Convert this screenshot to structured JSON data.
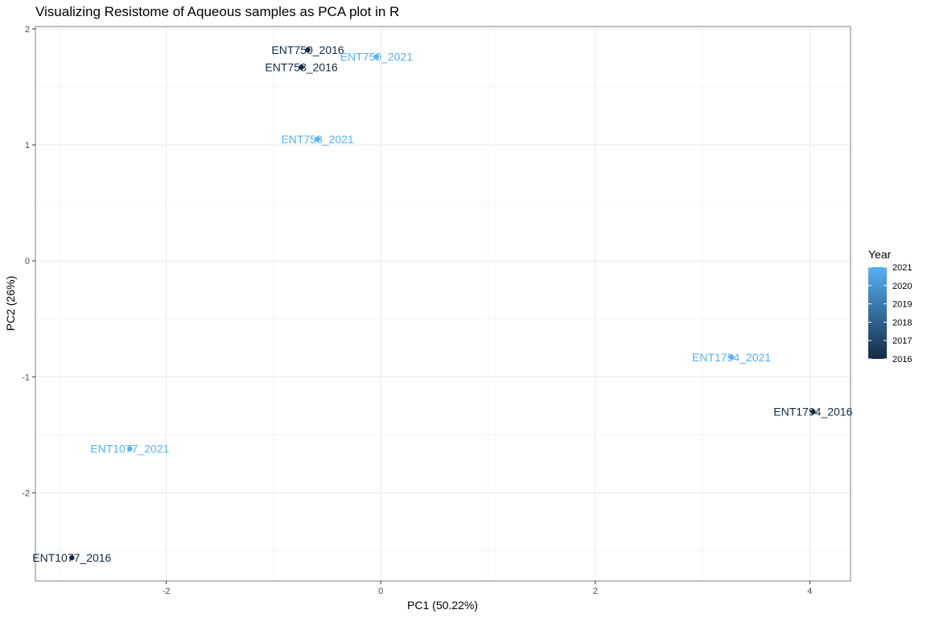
{
  "chart_data": {
    "type": "scatter",
    "title": "Visualizing Resistome of Aqueous samples as PCA plot in R",
    "xlabel": "PC1 (50.22%)",
    "ylabel": "PC2 (26%)",
    "xlim": [
      -3.22,
      4.38
    ],
    "ylim": [
      -2.76,
      2.02
    ],
    "xticks": [
      -2,
      0,
      2,
      4
    ],
    "yticks": [
      -2,
      -1,
      0,
      1,
      2
    ],
    "grid": true,
    "legend": {
      "title": "Year",
      "position": "right",
      "type": "colorbar",
      "range": [
        2016,
        2021
      ],
      "breaks": [
        2021,
        2020,
        2019,
        2018,
        2017,
        2016
      ],
      "low_color": "#132B43",
      "high_color": "#56B1F7"
    },
    "points": [
      {
        "label": "ENT750_2016",
        "x": -0.68,
        "y": 1.82,
        "year": 2016
      },
      {
        "label": "ENT758_2016",
        "x": -0.74,
        "y": 1.67,
        "year": 2016
      },
      {
        "label": "ENT750_2021",
        "x": -0.04,
        "y": 1.76,
        "year": 2021
      },
      {
        "label": "ENT758_2021",
        "x": -0.59,
        "y": 1.05,
        "year": 2021
      },
      {
        "label": "ENT1794_2021",
        "x": 3.27,
        "y": -0.83,
        "year": 2021
      },
      {
        "label": "ENT1794_2016",
        "x": 4.03,
        "y": -1.3,
        "year": 2016
      },
      {
        "label": "ENT1077_2021",
        "x": -2.34,
        "y": -1.62,
        "year": 2021
      },
      {
        "label": "ENT1077_2016",
        "x": -2.88,
        "y": -2.56,
        "year": 2016
      }
    ]
  }
}
